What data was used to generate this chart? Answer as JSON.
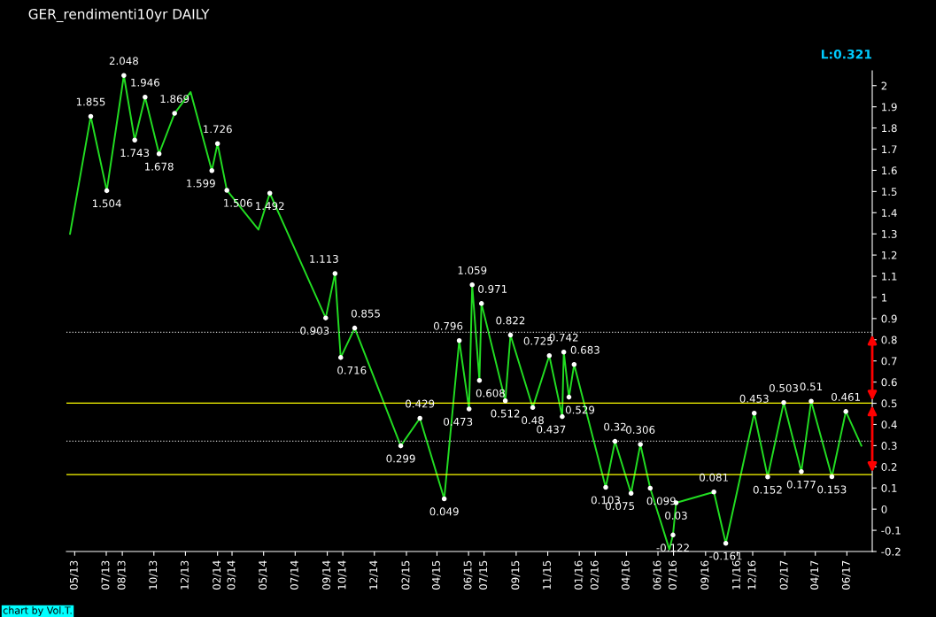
{
  "chart_data": {
    "type": "line",
    "title": "GER_rendimenti10yr DAILY",
    "x": [
      "2013-04-22",
      "2013-06-01",
      "2013-07-02",
      "2013-08-04",
      "2013-08-25",
      "2013-09-14",
      "2013-10-11",
      "2013-11-10",
      "2013-12-11",
      "2014-01-21",
      "2014-02-01",
      "2014-02-19",
      "2014-04-21",
      "2014-05-13",
      "2014-08-29",
      "2014-09-16",
      "2014-09-27",
      "2014-10-24",
      "2015-01-21",
      "2015-02-27",
      "2015-04-15",
      "2015-05-14",
      "2015-06-02",
      "2015-06-08",
      "2015-06-22",
      "2015-06-26",
      "2015-08-11",
      "2015-08-21",
      "2015-10-03",
      "2015-11-04",
      "2015-11-29",
      "2015-12-02",
      "2015-12-12",
      "2015-12-22",
      "2016-02-21",
      "2016-03-10",
      "2016-04-10",
      "2016-04-28",
      "2016-05-17",
      "2016-06-23",
      "2016-06-30",
      "2016-07-06",
      "2016-09-17",
      "2016-10-10",
      "2016-12-04",
      "2016-12-30",
      "2017-01-30",
      "2017-03-05",
      "2017-03-24",
      "2017-05-03",
      "2017-05-30",
      "2017-06-29"
    ],
    "series": [
      {
        "color": "#22dd22",
        "values": [
          1.3,
          1.855,
          1.504,
          2.048,
          1.743,
          1.946,
          1.678,
          1.869,
          1.97,
          1.599,
          1.726,
          1.506,
          1.32,
          1.492,
          0.903,
          1.113,
          0.716,
          0.855,
          0.299,
          0.429,
          0.049,
          0.796,
          0.473,
          1.059,
          0.608,
          0.971,
          0.512,
          0.822,
          0.48,
          0.725,
          0.437,
          0.742,
          0.529,
          0.683,
          0.103,
          0.32,
          0.075,
          0.306,
          0.099,
          -0.19,
          -0.122,
          0.03,
          0.081,
          -0.161,
          0.453,
          0.152,
          0.503,
          0.177,
          0.51,
          0.153,
          0.461,
          0.3
        ]
      }
    ],
    "xlim": [
      "2013-04-15",
      "2017-07-20"
    ],
    "xticks": [
      {
        "value": "2013-05-01",
        "label": "05/13"
      },
      {
        "value": "2013-07-01",
        "label": "07/13"
      },
      {
        "value": "2013-08-01",
        "label": "08/13"
      },
      {
        "value": "2013-10-01",
        "label": "10/13"
      },
      {
        "value": "2013-12-01",
        "label": "12/13"
      },
      {
        "value": "2014-02-01",
        "label": "02/14"
      },
      {
        "value": "2014-03-01",
        "label": "03/14"
      },
      {
        "value": "2014-05-01",
        "label": "05/14"
      },
      {
        "value": "2014-07-01",
        "label": "07/14"
      },
      {
        "value": "2014-09-01",
        "label": "09/14"
      },
      {
        "value": "2014-10-01",
        "label": "10/14"
      },
      {
        "value": "2014-12-01",
        "label": "12/14"
      },
      {
        "value": "2015-02-01",
        "label": "02/15"
      },
      {
        "value": "2015-04-01",
        "label": "04/15"
      },
      {
        "value": "2015-06-01",
        "label": "06/15"
      },
      {
        "value": "2015-07-01",
        "label": "07/15"
      },
      {
        "value": "2015-09-01",
        "label": "09/15"
      },
      {
        "value": "2015-11-01",
        "label": "11/15"
      },
      {
        "value": "2016-01-01",
        "label": "01/16"
      },
      {
        "value": "2016-02-01",
        "label": "02/16"
      },
      {
        "value": "2016-04-01",
        "label": "04/16"
      },
      {
        "value": "2016-06-01",
        "label": "06/16"
      },
      {
        "value": "2016-07-01",
        "label": "07/16"
      },
      {
        "value": "2016-09-01",
        "label": "09/16"
      },
      {
        "value": "2016-11-01",
        "label": "11/16"
      },
      {
        "value": "2016-12-01",
        "label": "12/16"
      },
      {
        "value": "2017-02-01",
        "label": "02/17"
      },
      {
        "value": "2017-04-01",
        "label": "04/17"
      },
      {
        "value": "2017-06-01",
        "label": "06/17"
      }
    ],
    "ylim": [
      -0.2,
      2.07
    ],
    "yticks": [
      -0.2,
      -0.1,
      0,
      0.1,
      0.2,
      0.3,
      0.4,
      0.5,
      0.6,
      0.7,
      0.8,
      0.9,
      1,
      1.1,
      1.2,
      1.3,
      1.4,
      1.5,
      1.6,
      1.7,
      1.8,
      1.9,
      2
    ],
    "ref_lines": [
      {
        "axis": "y",
        "value": 0.835,
        "color": "#cccccc",
        "line_style": "dotted"
      },
      {
        "axis": "y",
        "value": 0.321,
        "color": "#cccccc",
        "line_style": "dotted"
      },
      {
        "axis": "y",
        "value": 0.501,
        "color": "#ffff00",
        "line_style": "solid"
      },
      {
        "axis": "y",
        "value": 0.163,
        "color": "#ffff00",
        "line_style": "solid"
      }
    ],
    "annotations": [
      "L:0.321",
      {
        "text": "1.855",
        "x": "2013-06-01",
        "y": 1.855
      },
      {
        "text": "1.504",
        "x": "2013-07-02",
        "y": 1.504
      },
      {
        "text": "2.048",
        "x": "2013-08-04",
        "y": 2.048
      },
      {
        "text": "1.743",
        "x": "2013-08-25",
        "y": 1.743
      },
      {
        "text": "1.946",
        "x": "2013-09-14",
        "y": 1.946
      },
      {
        "text": "1.678",
        "x": "2013-10-11",
        "y": 1.678
      },
      {
        "text": "1.869",
        "x": "2013-11-10",
        "y": 1.869
      },
      {
        "text": "1.599",
        "x": "2014-01-21",
        "y": 1.599
      },
      {
        "text": "1.726",
        "x": "2014-02-01",
        "y": 1.726
      },
      {
        "text": "1.506",
        "x": "2014-02-19",
        "y": 1.506
      },
      {
        "text": "1.492",
        "x": "2014-05-13",
        "y": 1.492
      },
      {
        "text": "0.903",
        "x": "2014-08-29",
        "y": 0.903
      },
      {
        "text": "1.113",
        "x": "2014-09-16",
        "y": 1.113
      },
      {
        "text": "0.716",
        "x": "2014-09-27",
        "y": 0.716
      },
      {
        "text": "0.855",
        "x": "2014-10-24",
        "y": 0.855
      },
      {
        "text": "0.299",
        "x": "2015-01-21",
        "y": 0.299
      },
      {
        "text": "0.429",
        "x": "2015-02-27",
        "y": 0.429
      },
      {
        "text": "0.049",
        "x": "2015-04-15",
        "y": 0.049
      },
      {
        "text": "0.796",
        "x": "2015-05-14",
        "y": 0.796
      },
      {
        "text": "0.473",
        "x": "2015-06-02",
        "y": 0.473
      },
      {
        "text": "1.059",
        "x": "2015-06-08",
        "y": 1.059
      },
      {
        "text": "0.608",
        "x": "2015-06-22",
        "y": 0.608
      },
      {
        "text": "0.971",
        "x": "2015-06-26",
        "y": 0.971
      },
      {
        "text": "0.512",
        "x": "2015-08-11",
        "y": 0.512
      },
      {
        "text": "0.822",
        "x": "2015-08-21",
        "y": 0.822
      },
      {
        "text": "0.48",
        "x": "2015-10-03",
        "y": 0.48
      },
      {
        "text": "0.725",
        "x": "2015-11-04",
        "y": 0.725
      },
      {
        "text": "0.437",
        "x": "2015-11-29",
        "y": 0.437
      },
      {
        "text": "0.742",
        "x": "2015-12-02",
        "y": 0.742
      },
      {
        "text": "0.529",
        "x": "2015-12-12",
        "y": 0.529
      },
      {
        "text": "0.683",
        "x": "2015-12-22",
        "y": 0.683
      },
      {
        "text": "0.103",
        "x": "2016-02-21",
        "y": 0.103
      },
      {
        "text": "0.32",
        "x": "2016-03-10",
        "y": 0.32
      },
      {
        "text": "0.075",
        "x": "2016-04-10",
        "y": 0.075
      },
      {
        "text": "0.306",
        "x": "2016-04-28",
        "y": 0.306
      },
      {
        "text": "0.099",
        "x": "2016-05-17",
        "y": 0.099
      },
      {
        "text": "-0.122",
        "x": "2016-06-30",
        "y": -0.122
      },
      {
        "text": "0.03",
        "x": "2016-07-06",
        "y": 0.03
      },
      {
        "text": "0.081",
        "x": "2016-09-17",
        "y": 0.081
      },
      {
        "text": "-0.161",
        "x": "2016-10-10",
        "y": -0.161
      },
      {
        "text": "0.453",
        "x": "2016-12-04",
        "y": 0.453
      },
      {
        "text": "0.152",
        "x": "2016-12-30",
        "y": 0.152
      },
      {
        "text": "0.503",
        "x": "2017-01-30",
        "y": 0.503
      },
      {
        "text": "0.177",
        "x": "2017-03-05",
        "y": 0.177
      },
      {
        "text": "0.51",
        "x": "2017-03-24",
        "y": 0.51
      },
      {
        "text": "0.153",
        "x": "2017-05-03",
        "y": 0.153
      },
      {
        "text": "0.461",
        "x": "2017-05-30",
        "y": 0.461
      },
      "chart by Vol.T."
    ],
    "grid": false,
    "marker": "none",
    "line_style": "solid"
  }
}
